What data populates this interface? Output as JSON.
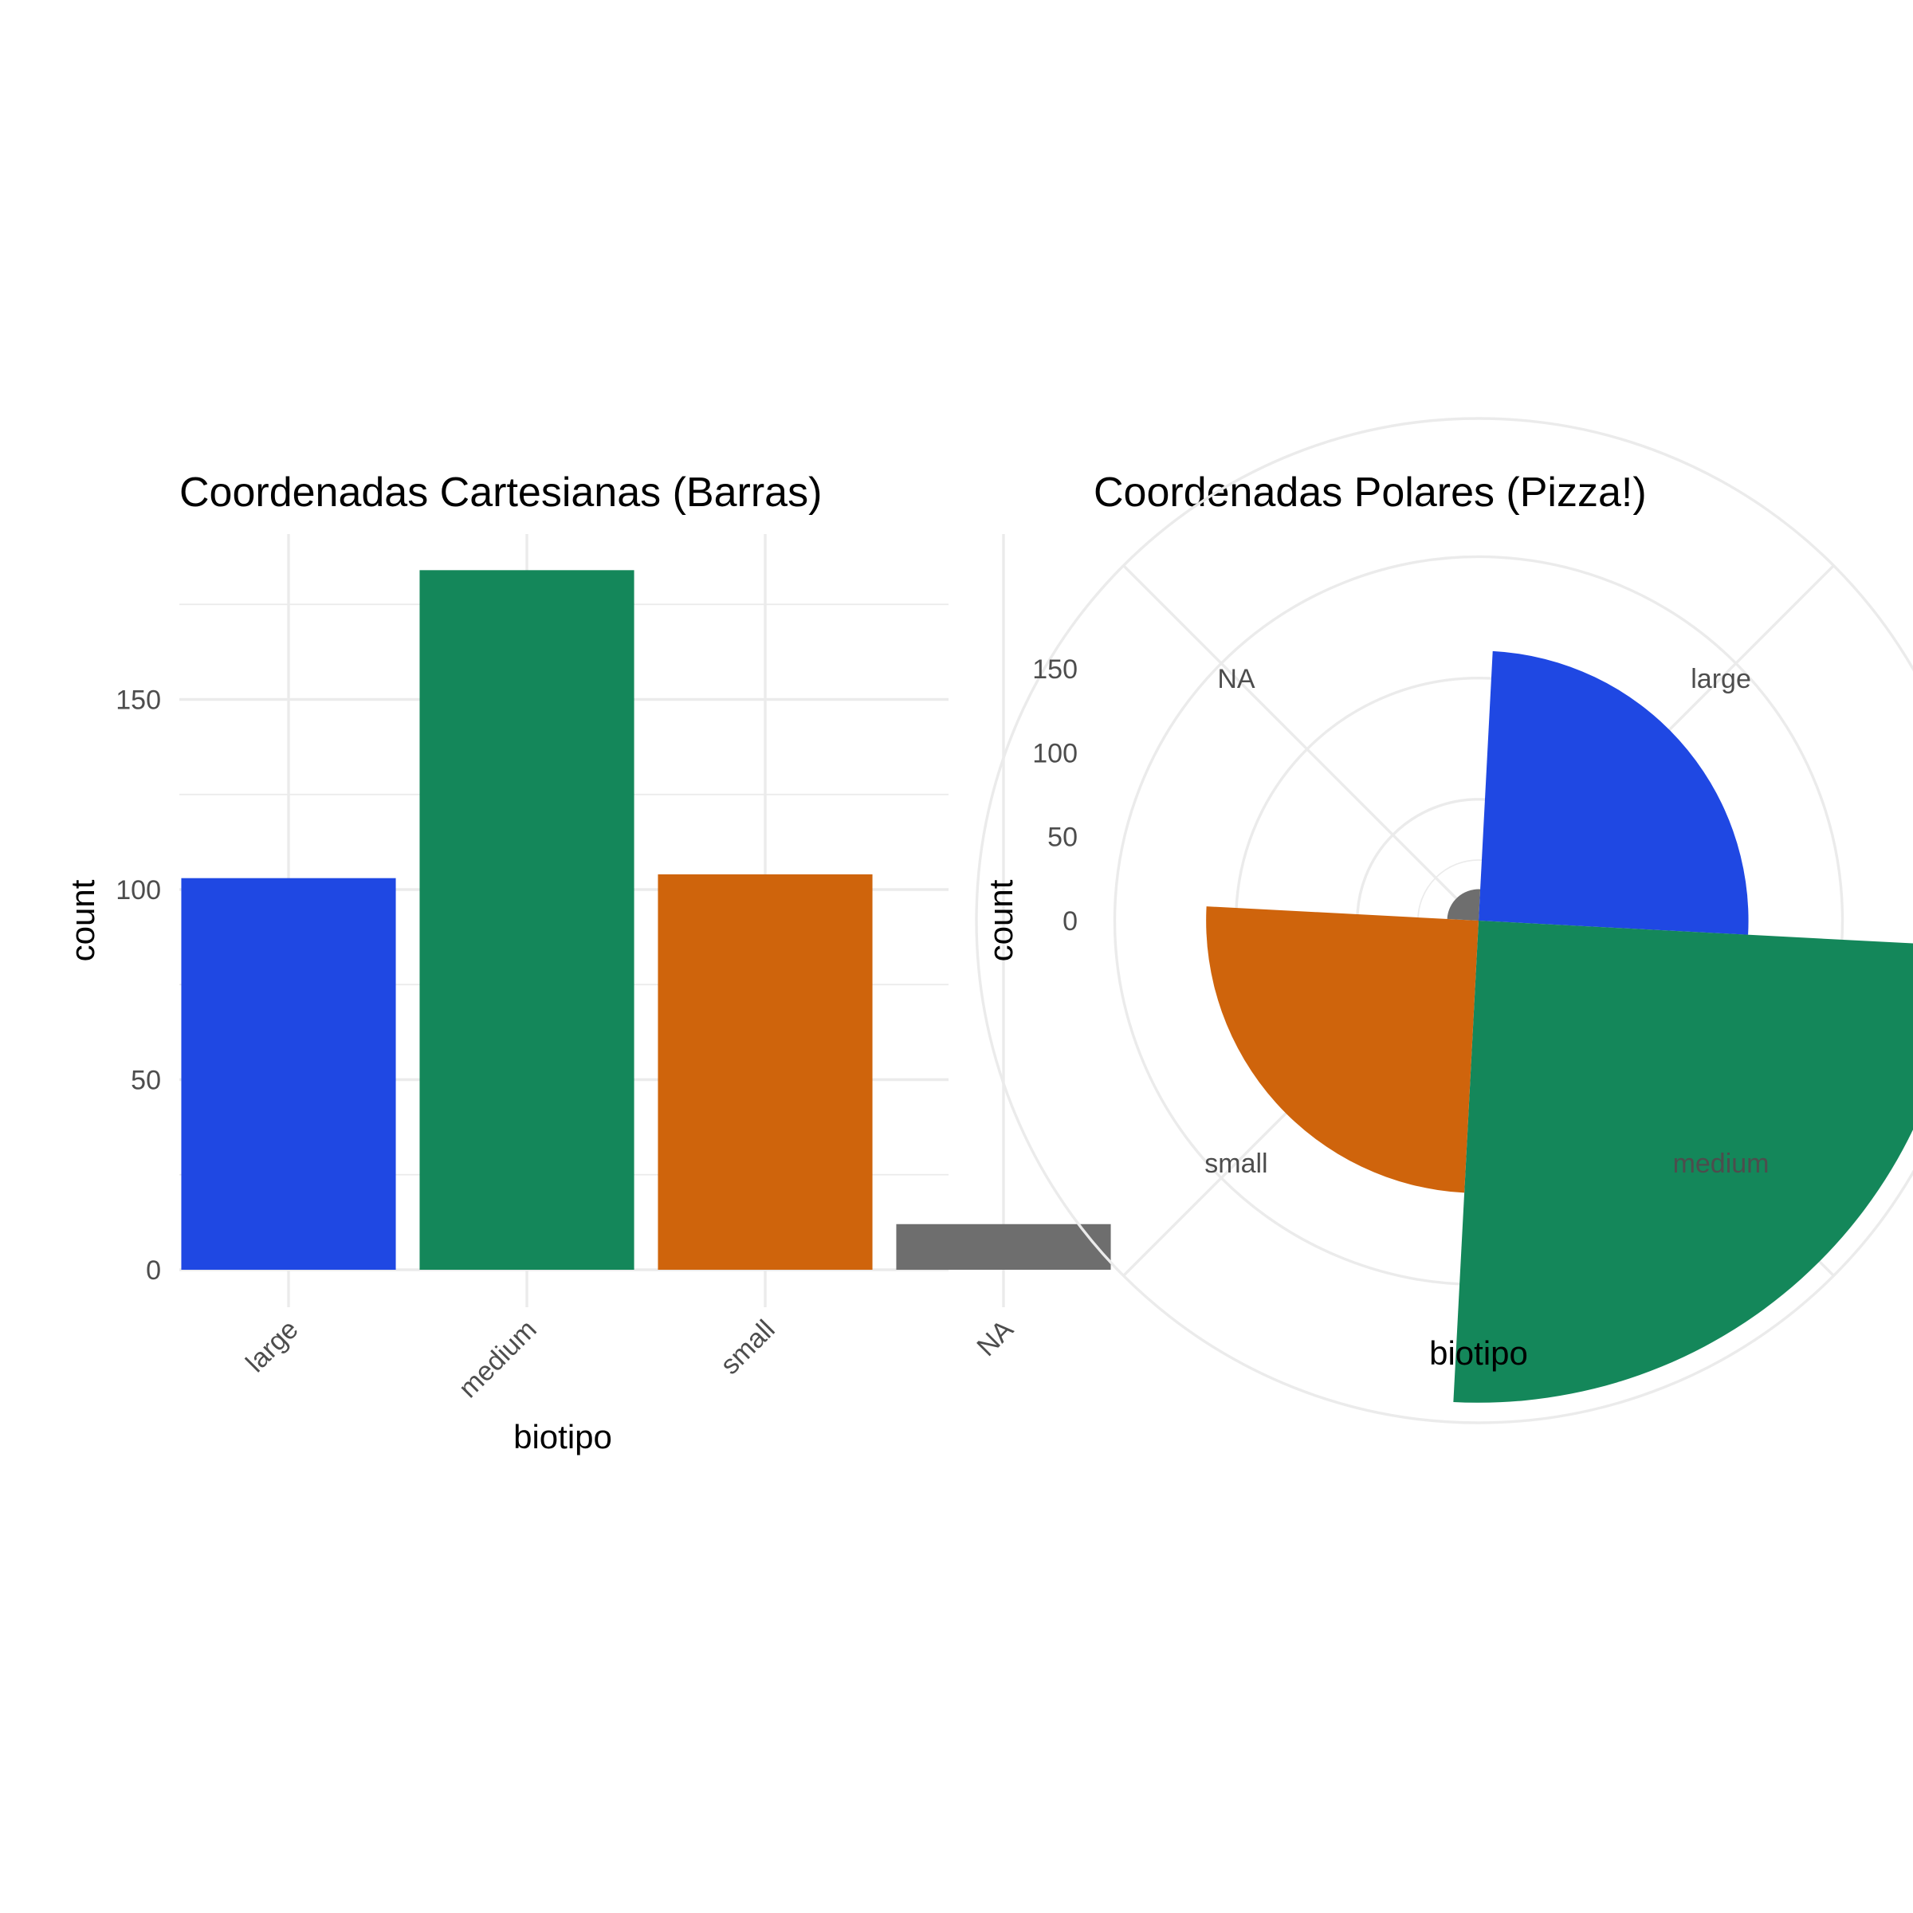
{
  "chart_data": [
    {
      "type": "bar",
      "title": "Coordenadas Cartesianas (Barras)",
      "xlabel": "biotipo",
      "ylabel": "count",
      "categories": [
        "large",
        "medium",
        "small",
        "NA"
      ],
      "values": [
        103,
        184,
        104,
        12
      ],
      "colors": [
        "#1F48E3",
        "#14875A",
        "#CF640C",
        "#6E6E6E"
      ],
      "ylim": [
        0,
        195
      ],
      "yticks": [
        "0",
        "50",
        "100",
        "150"
      ],
      "grid": true
    },
    {
      "type": "pie",
      "title": "Coordenadas Polares (Pizza!)",
      "xlabel": "biotipo",
      "ylabel": "count",
      "categories": [
        "large",
        "medium",
        "small",
        "NA"
      ],
      "values": [
        103,
        184,
        104,
        12
      ],
      "colors": [
        "#1F48E3",
        "#14875A",
        "#CF640C",
        "#6E6E6E"
      ],
      "rlim": [
        0,
        207
      ],
      "rticks": [
        "0",
        "50",
        "100",
        "150"
      ],
      "grid": true
    }
  ]
}
